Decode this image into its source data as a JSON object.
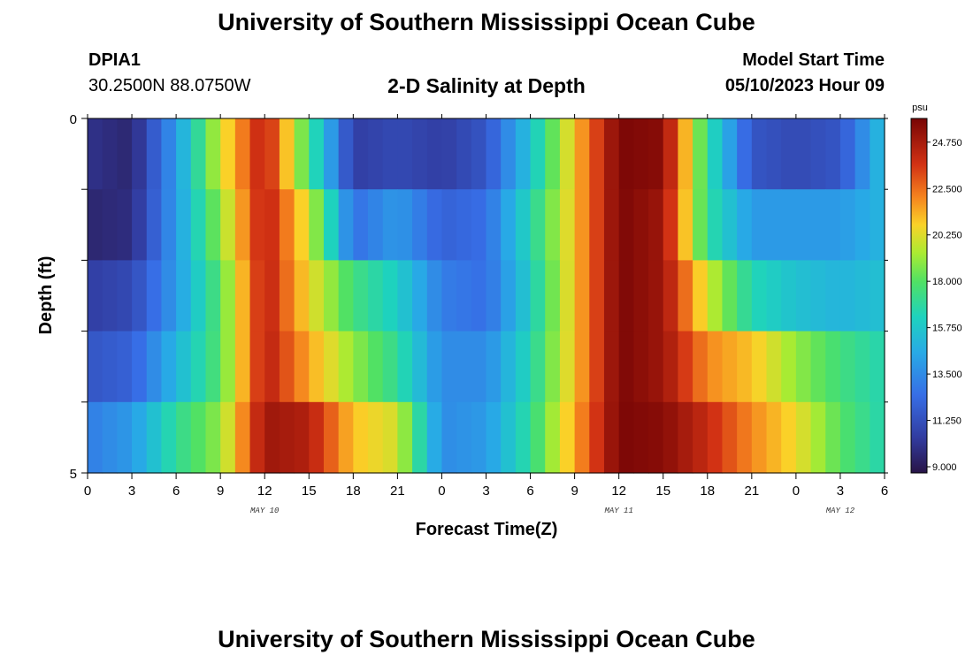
{
  "page": {
    "title": "University of Southern Mississippi Ocean Cube",
    "station": "DPIA1",
    "coords": "30.2500N  88.0750W",
    "model_start_label": "Model Start Time",
    "model_start_value": "05/10/2023 Hour 09",
    "footer_title": "University of Southern Mississippi Ocean Cube"
  },
  "chart_data": {
    "type": "heatmap",
    "title": "2-D Salinity at Depth",
    "xlabel": "Forecast Time(Z)",
    "ylabel": "Depth (ft)",
    "x_ticks": [
      "0",
      "3",
      "6",
      "9",
      "12",
      "15",
      "18",
      "21",
      "0",
      "3",
      "6",
      "9",
      "12",
      "15",
      "18",
      "21",
      "0",
      "3",
      "6"
    ],
    "date_labels": [
      {
        "label": "MAY 10",
        "hour": 12
      },
      {
        "label": "MAY 11",
        "hour": 36
      },
      {
        "label": "MAY 12",
        "hour": 51
      }
    ],
    "y_ticks": [
      "0",
      "5"
    ],
    "ylim": [
      0,
      5
    ],
    "xlim": [
      0,
      54
    ],
    "colorbar": {
      "unit": "psu",
      "min": 8.7,
      "max": 25.9,
      "ticks": [
        "9.000",
        "11.250",
        "13.500",
        "15.750",
        "18.000",
        "20.250",
        "22.500",
        "24.750"
      ]
    },
    "hours": [
      0,
      3,
      6,
      9,
      12,
      15,
      18,
      21,
      24,
      27,
      30,
      33,
      36,
      39,
      42,
      45,
      48,
      51,
      54
    ],
    "depth_layers": [
      "layer-1",
      "layer-2",
      "layer-3",
      "layer-4",
      "layer-5"
    ],
    "salinity": [
      [
        10,
        9.5,
        14,
        20,
        24.5,
        17.5,
        10.5,
        11,
        10.5,
        11.5,
        15.5,
        21,
        25.8,
        25.5,
        17,
        11.5,
        11,
        11.5,
        15.5
      ],
      [
        9.5,
        9.8,
        14,
        19,
        24.5,
        20,
        12.5,
        14,
        12,
        12.5,
        16.5,
        21,
        25.8,
        25,
        17,
        14,
        14,
        14,
        15
      ],
      [
        10.5,
        11,
        14,
        18,
        24.5,
        20.5,
        17.5,
        16,
        13,
        12.5,
        16,
        21,
        25.8,
        25,
        20,
        16.5,
        15.5,
        15,
        15.5
      ],
      [
        11.5,
        12,
        15,
        18,
        24.5,
        21.5,
        19,
        17,
        13.5,
        13.5,
        16.5,
        21,
        25.8,
        25,
        22,
        21,
        19,
        17.5,
        16.5
      ],
      [
        13,
        14,
        17,
        19,
        25,
        24.5,
        21,
        20,
        13.5,
        14,
        17,
        21.5,
        25.8,
        25.5,
        24,
        22,
        20.5,
        18,
        16.5
      ]
    ]
  }
}
